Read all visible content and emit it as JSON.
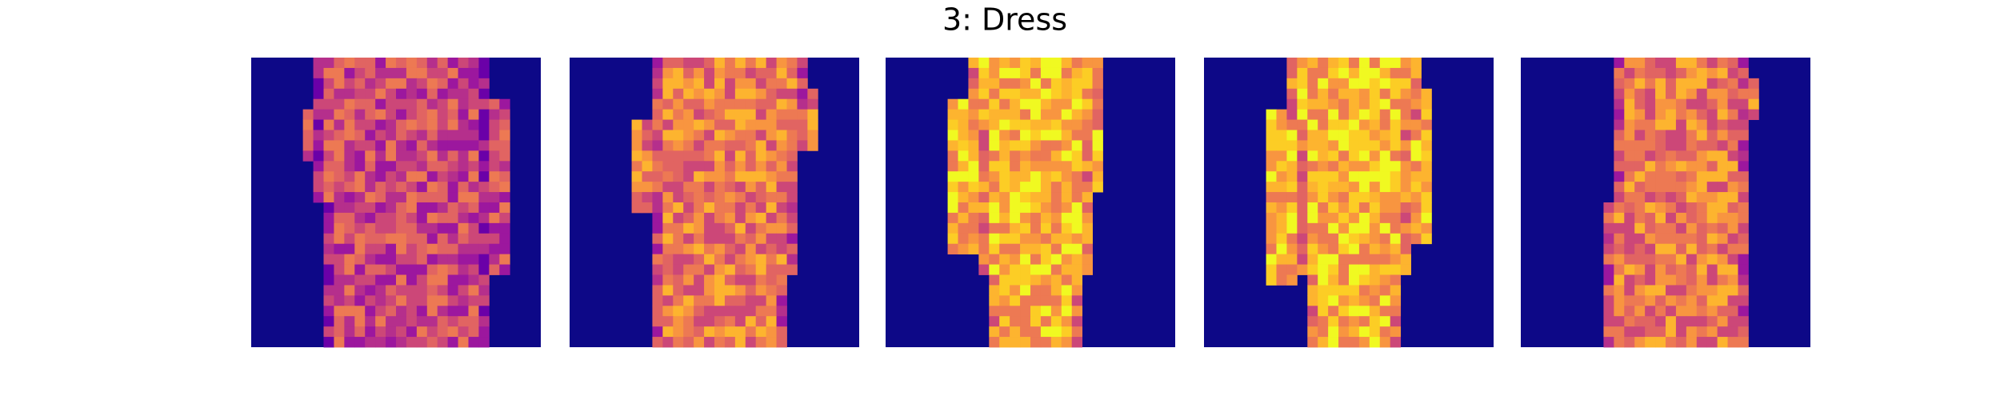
{
  "header": {
    "title": "3: Dress"
  }
}
